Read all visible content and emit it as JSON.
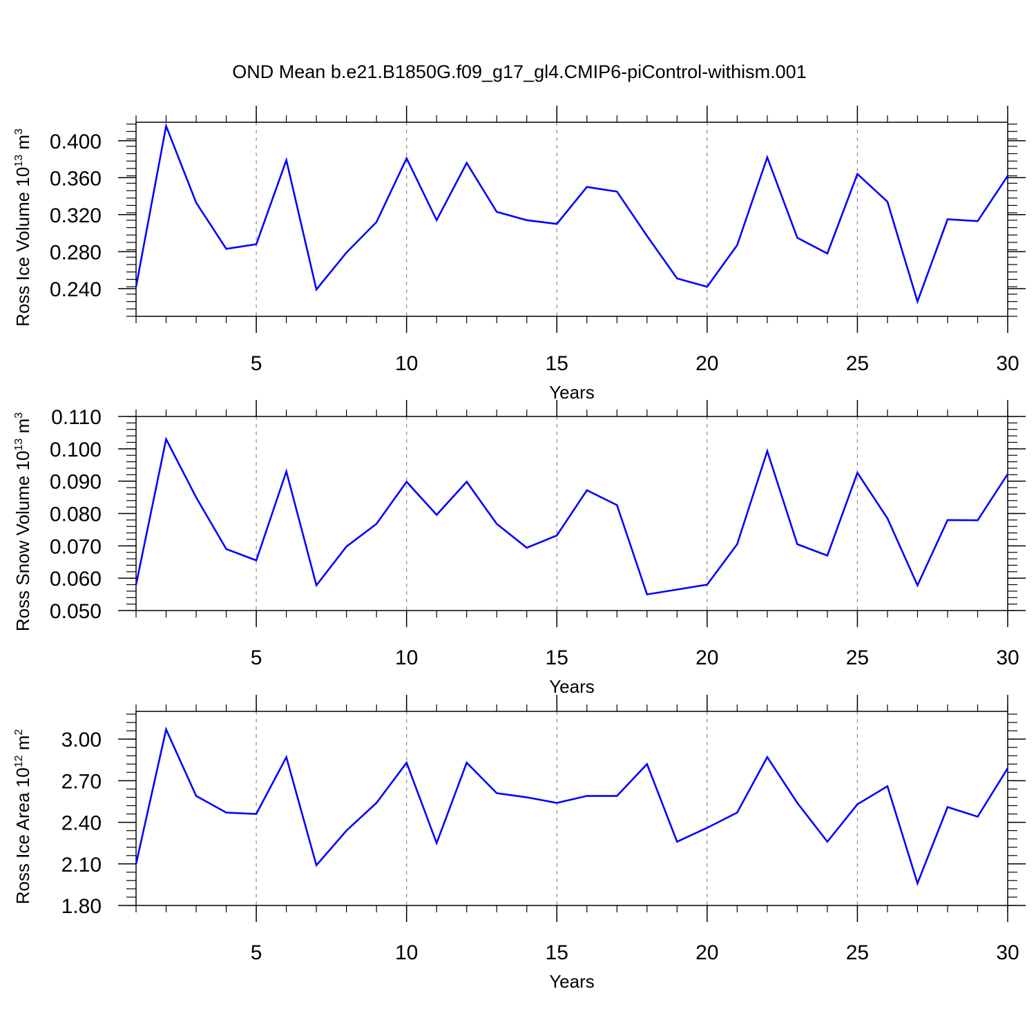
{
  "title": "OND Mean b.e21.B1850G.f09_g17_gl4.CMIP6-piControl-withism.001",
  "colors": {
    "line": "#0000ff",
    "axis": "#000000",
    "grid": "#888888"
  },
  "chart_data": [
    {
      "type": "line",
      "xlabel": "Years",
      "ylabel_main": "Ross Ice Volume 10",
      "ylabel_exp": "13",
      "ylabel_unit": " m",
      "ylabel_unit_exp": "3",
      "xlim": [
        1,
        30
      ],
      "ylim": [
        0.21,
        0.42
      ],
      "x_ticks": [
        5,
        10,
        15,
        20,
        25,
        30
      ],
      "x_tick_labels": [
        "5",
        "10",
        "15",
        "20",
        "25",
        "30"
      ],
      "y_ticks": [
        0.24,
        0.28,
        0.32,
        0.36,
        0.4
      ],
      "y_tick_labels": [
        "0.240",
        "0.280",
        "0.320",
        "0.360",
        "0.400"
      ],
      "y_minor_step": 0.008,
      "grid": "x-dashed",
      "x": [
        1,
        2,
        3,
        4,
        5,
        6,
        7,
        8,
        9,
        10,
        11,
        12,
        13,
        14,
        15,
        16,
        17,
        18,
        19,
        20,
        21,
        22,
        23,
        24,
        25,
        26,
        27,
        28,
        29,
        30
      ],
      "values": [
        0.242,
        0.416,
        0.333,
        0.283,
        0.288,
        0.379,
        0.239,
        0.279,
        0.312,
        0.381,
        0.314,
        0.376,
        0.323,
        0.314,
        0.31,
        0.35,
        0.345,
        0.297,
        0.251,
        0.242,
        0.287,
        0.382,
        0.295,
        0.278,
        0.364,
        0.334,
        0.226,
        0.315,
        0.313,
        0.362
      ]
    },
    {
      "type": "line",
      "xlabel": "Years",
      "ylabel_main": "Ross Snow Volume 10",
      "ylabel_exp": "13",
      "ylabel_unit": " m",
      "ylabel_unit_exp": "3",
      "xlim": [
        1,
        30
      ],
      "ylim": [
        0.05,
        0.11
      ],
      "x_ticks": [
        5,
        10,
        15,
        20,
        25,
        30
      ],
      "x_tick_labels": [
        "5",
        "10",
        "15",
        "20",
        "25",
        "30"
      ],
      "y_ticks": [
        0.05,
        0.06,
        0.07,
        0.08,
        0.09,
        0.1,
        0.11
      ],
      "y_tick_labels": [
        "0.050",
        "0.060",
        "0.070",
        "0.080",
        "0.090",
        "0.100",
        "0.110"
      ],
      "y_minor_step": 0.002,
      "grid": "x-dashed",
      "x": [
        1,
        2,
        3,
        4,
        5,
        6,
        7,
        8,
        9,
        10,
        11,
        12,
        13,
        14,
        15,
        16,
        17,
        18,
        19,
        20,
        21,
        22,
        23,
        24,
        25,
        26,
        27,
        28,
        29,
        30
      ],
      "values": [
        0.058,
        0.103,
        0.085,
        0.069,
        0.0655,
        0.093,
        0.0578,
        0.0698,
        0.0768,
        0.0898,
        0.0796,
        0.0898,
        0.0768,
        0.0694,
        0.0732,
        0.0872,
        0.0826,
        0.055,
        0.0565,
        0.058,
        0.0705,
        0.0993,
        0.0705,
        0.067,
        0.0926,
        0.0785,
        0.0578,
        0.078,
        0.0779,
        0.0922
      ]
    },
    {
      "type": "line",
      "xlabel": "Years",
      "ylabel_main": "Ross Ice Area 10",
      "ylabel_exp": "12",
      "ylabel_unit": " m",
      "ylabel_unit_exp": "2",
      "xlim": [
        1,
        30
      ],
      "ylim": [
        1.8,
        3.2
      ],
      "x_ticks": [
        5,
        10,
        15,
        20,
        25,
        30
      ],
      "x_tick_labels": [
        "5",
        "10",
        "15",
        "20",
        "25",
        "30"
      ],
      "y_ticks": [
        1.8,
        2.1,
        2.4,
        2.7,
        3.0
      ],
      "y_tick_labels": [
        "1.80",
        "2.10",
        "2.40",
        "2.70",
        "3.00"
      ],
      "y_minor_step": 0.06,
      "grid": "x-dashed",
      "x": [
        1,
        2,
        3,
        4,
        5,
        6,
        7,
        8,
        9,
        10,
        11,
        12,
        13,
        14,
        15,
        16,
        17,
        18,
        19,
        20,
        21,
        22,
        23,
        24,
        25,
        26,
        27,
        28,
        29,
        30
      ],
      "values": [
        2.1,
        3.07,
        2.59,
        2.47,
        2.46,
        2.87,
        2.09,
        2.34,
        2.54,
        2.83,
        2.25,
        2.83,
        2.61,
        2.58,
        2.54,
        2.59,
        2.59,
        2.82,
        2.26,
        2.36,
        2.47,
        2.87,
        2.54,
        2.26,
        2.53,
        2.66,
        1.96,
        2.51,
        2.44,
        2.79
      ]
    }
  ]
}
